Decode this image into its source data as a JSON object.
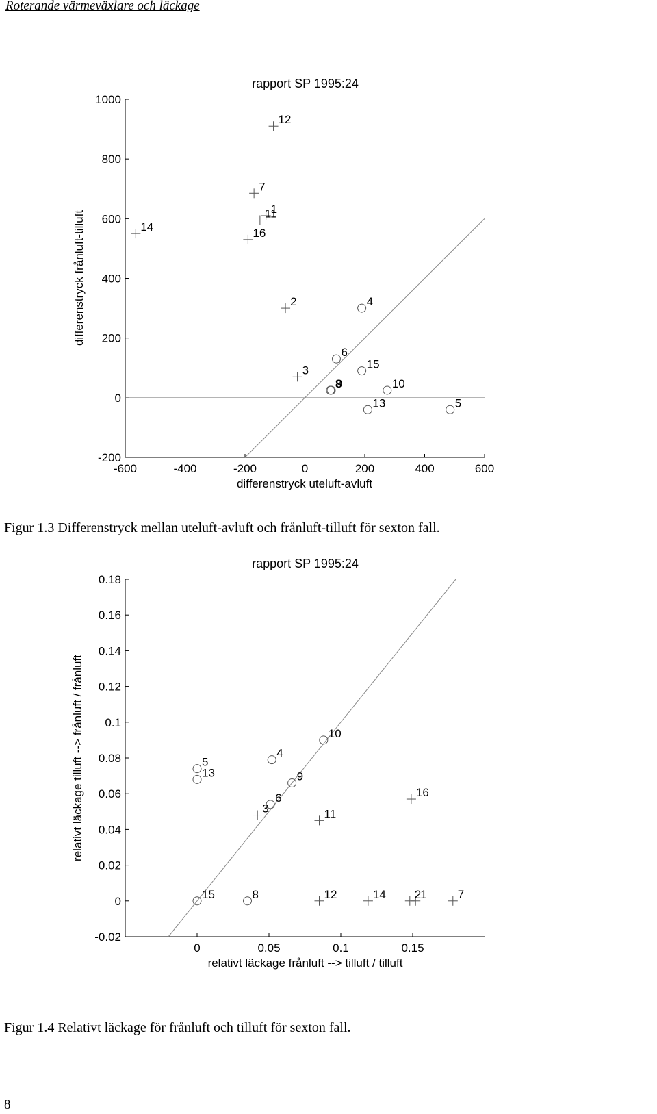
{
  "header": {
    "title": "Roterande värmeväxlare och läckage"
  },
  "page_number": "8",
  "figures": [
    {
      "caption": "Figur 1.3 Differenstryck mellan uteluft-avluft och frånluft-tilluft för sexton fall."
    },
    {
      "caption": "Figur 1.4 Relativt läckage för frånluft och tilluft för sexton fall."
    }
  ],
  "chart_data": [
    {
      "type": "scatter",
      "title": "rapport SP 1995:24",
      "xlabel": "differenstryck uteluft-avluft",
      "ylabel": "differenstryck frånluft-tilluft",
      "xlim": [
        -600,
        600
      ],
      "ylim": [
        -200,
        1000
      ],
      "xticks": [
        "-600",
        "-400",
        "-200",
        "0",
        "200",
        "400",
        "600"
      ],
      "yticks": [
        "-200",
        "0",
        "200",
        "400",
        "600",
        "800",
        "1000"
      ],
      "reference_lines": [
        "x=0",
        "y=0",
        "y=x"
      ],
      "points": [
        {
          "label": "1",
          "marker": "plus",
          "x": -130,
          "y": 610
        },
        {
          "label": "2",
          "marker": "plus",
          "x": -65,
          "y": 300
        },
        {
          "label": "3",
          "marker": "plus",
          "x": -25,
          "y": 70
        },
        {
          "label": "4",
          "marker": "circle",
          "x": 190,
          "y": 300
        },
        {
          "label": "5",
          "marker": "circle",
          "x": 485,
          "y": -40
        },
        {
          "label": "6",
          "marker": "circle",
          "x": 105,
          "y": 130
        },
        {
          "label": "7",
          "marker": "plus",
          "x": -170,
          "y": 685
        },
        {
          "label": "8",
          "marker": "circle",
          "x": 85,
          "y": 25
        },
        {
          "label": "9",
          "marker": "circle",
          "x": 88,
          "y": 25
        },
        {
          "label": "10",
          "marker": "circle",
          "x": 275,
          "y": 25
        },
        {
          "label": "11",
          "marker": "plus",
          "x": -150,
          "y": 595
        },
        {
          "label": "12",
          "marker": "plus",
          "x": -105,
          "y": 910
        },
        {
          "label": "13",
          "marker": "circle",
          "x": 210,
          "y": -40
        },
        {
          "label": "14",
          "marker": "plus",
          "x": -565,
          "y": 550
        },
        {
          "label": "15",
          "marker": "circle",
          "x": 190,
          "y": 90
        },
        {
          "label": "16",
          "marker": "plus",
          "x": -190,
          "y": 530
        }
      ]
    },
    {
      "type": "scatter",
      "title": "rapport SP 1995:24",
      "xlabel": "relativt läckage frånluft --> tilluft / tilluft",
      "ylabel": "relativt läckage tilluft --> frånluft / frånluft",
      "xlim": [
        -0.05,
        0.2
      ],
      "ylim": [
        -0.02,
        0.18
      ],
      "xticks": [
        "0",
        "0.05",
        "0.1",
        "0.15"
      ],
      "yticks": [
        "-0.02",
        "0",
        "0.02",
        "0.04",
        "0.06",
        "0.08",
        "0.1",
        "0.12",
        "0.14",
        "0.16",
        "0.18"
      ],
      "reference_lines": [
        "y=x"
      ],
      "points": [
        {
          "label": "1",
          "marker": "plus",
          "x": 0.152,
          "y": 0.0
        },
        {
          "label": "2",
          "marker": "plus",
          "x": 0.148,
          "y": 0.0
        },
        {
          "label": "3",
          "marker": "plus",
          "x": 0.042,
          "y": 0.048
        },
        {
          "label": "4",
          "marker": "circle",
          "x": 0.052,
          "y": 0.079
        },
        {
          "label": "5",
          "marker": "circle",
          "x": 0.0,
          "y": 0.074
        },
        {
          "label": "6",
          "marker": "circle",
          "x": 0.051,
          "y": 0.054
        },
        {
          "label": "7",
          "marker": "plus",
          "x": 0.178,
          "y": 0.0
        },
        {
          "label": "8",
          "marker": "circle",
          "x": 0.035,
          "y": 0.0
        },
        {
          "label": "9",
          "marker": "circle",
          "x": 0.066,
          "y": 0.066
        },
        {
          "label": "10",
          "marker": "circle",
          "x": 0.088,
          "y": 0.09
        },
        {
          "label": "11",
          "marker": "plus",
          "x": 0.085,
          "y": 0.045
        },
        {
          "label": "12",
          "marker": "plus",
          "x": 0.085,
          "y": 0.0
        },
        {
          "label": "13",
          "marker": "circle",
          "x": 0.0,
          "y": 0.068
        },
        {
          "label": "14",
          "marker": "plus",
          "x": 0.119,
          "y": 0.0
        },
        {
          "label": "15",
          "marker": "circle",
          "x": 0.0,
          "y": 0.0
        },
        {
          "label": "16",
          "marker": "plus",
          "x": 0.149,
          "y": 0.057
        }
      ]
    }
  ]
}
